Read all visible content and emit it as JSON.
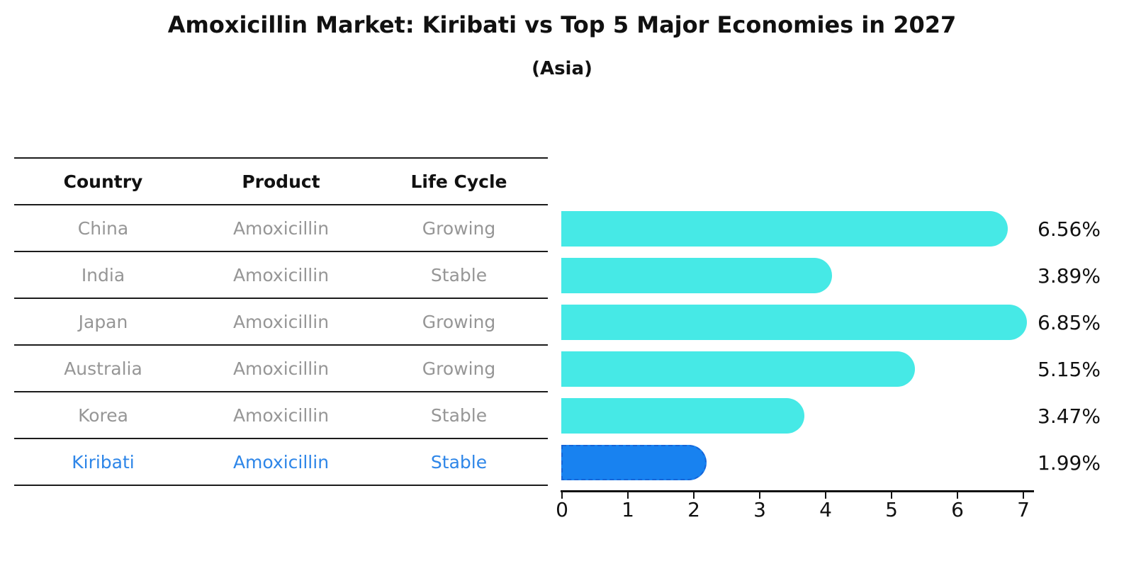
{
  "title": "Amoxicillin Market: Kiribati vs Top 5 Major Economies in 2027",
  "subtitle": "(Asia)",
  "table": {
    "headers": [
      "Country",
      "Product",
      "Life Cycle"
    ],
    "rows": [
      {
        "country": "China",
        "product": "Amoxicillin",
        "life_cycle": "Growing",
        "highlight": false
      },
      {
        "country": "India",
        "product": "Amoxicillin",
        "life_cycle": "Stable",
        "highlight": false
      },
      {
        "country": "Japan",
        "product": "Amoxicillin",
        "life_cycle": "Growing",
        "highlight": false
      },
      {
        "country": "Australia",
        "product": "Amoxicillin",
        "life_cycle": "Growing",
        "highlight": false
      },
      {
        "country": "Korea",
        "product": "Amoxicillin",
        "life_cycle": "Stable",
        "highlight": false
      },
      {
        "country": "Kiribati",
        "product": "Amoxicillin",
        "life_cycle": "Stable",
        "highlight": true
      }
    ]
  },
  "chart_data": {
    "type": "bar",
    "orientation": "horizontal",
    "title": "Amoxicillin Market: Kiribati vs Top 5 Major Economies in 2027 (Asia)",
    "categories": [
      "China",
      "India",
      "Japan",
      "Australia",
      "Korea",
      "Kiribati"
    ],
    "values": [
      6.56,
      3.89,
      6.85,
      5.15,
      3.47,
      1.99
    ],
    "bar_labels": [
      "6.56%",
      "3.89%",
      "6.85%",
      "5.15%",
      "3.47%",
      "1.99%"
    ],
    "highlight_index": 5,
    "xlim": [
      0,
      7
    ],
    "xticks": [
      0,
      1,
      2,
      3,
      4,
      5,
      6,
      7
    ],
    "grid": false,
    "legend": false,
    "colors": {
      "bar": "#46e9e6",
      "highlight_bar": "#1882f0",
      "highlight_bar_border": "#1565d8",
      "highlight_row_text": "#2e86e8",
      "row_text": "#969696",
      "heading_text": "#111111"
    }
  }
}
